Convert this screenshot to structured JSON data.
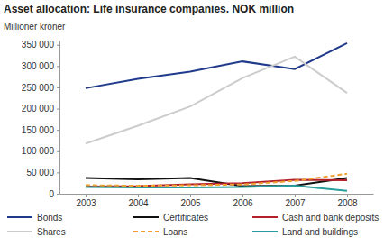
{
  "chart_data": {
    "type": "line",
    "title": "Asset allocation: Life insurance companies. NOK million",
    "y_label": "Millioner kroner",
    "categories": [
      "2003",
      "2004",
      "2005",
      "2006",
      "2007",
      "2008"
    ],
    "ylim": [
      0,
      360000
    ],
    "yticks": [
      0,
      {
        "value": 50000,
        "label": "50 000"
      },
      {
        "value": 100000,
        "label": "100 000"
      },
      {
        "value": 150000,
        "label": "150 000"
      },
      {
        "value": 200000,
        "label": "200 000"
      },
      {
        "value": 250000,
        "label": "250 000"
      },
      {
        "value": 300000,
        "label": "300 000"
      },
      {
        "value": 350000,
        "label": "350 000"
      }
    ],
    "grid": false,
    "legend": "bottom",
    "series": [
      {
        "name": "Bonds",
        "color": "#1f3a8a",
        "line_style": "solid",
        "values": [
          248000,
          270000,
          287000,
          311000,
          293000,
          354000
        ]
      },
      {
        "name": "Certificates",
        "color": "#111111",
        "line_style": "solid",
        "values": [
          37000,
          34000,
          37000,
          18000,
          19000,
          37000
        ]
      },
      {
        "name": "Cash and bank deposits",
        "color": "#b3202a",
        "line_style": "solid",
        "values": [
          17000,
          18000,
          22000,
          25000,
          33000,
          32000
        ]
      },
      {
        "name": "Shares",
        "color": "#cccccc",
        "line_style": "solid",
        "values": [
          118000,
          160000,
          205000,
          272000,
          322000,
          237000
        ]
      },
      {
        "name": "Loans",
        "color": "#f0a030",
        "line_style": "dashed",
        "values": [
          20000,
          19000,
          20000,
          22000,
          30000,
          47000
        ]
      },
      {
        "name": "Land and buildings",
        "color": "#2a9d9d",
        "line_style": "solid",
        "values": [
          16000,
          15000,
          15000,
          16000,
          19000,
          7000
        ]
      }
    ]
  }
}
